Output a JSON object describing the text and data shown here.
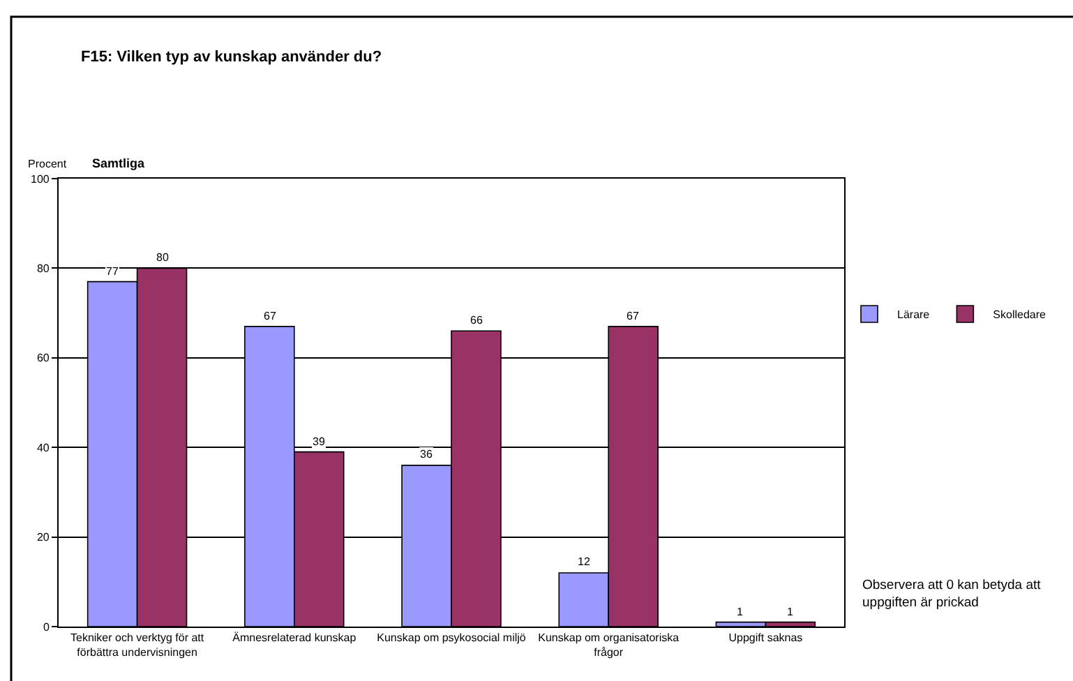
{
  "chart_data": {
    "type": "bar",
    "title": "F15: Vilken typ av kunskap använder du?",
    "subtitle": "Samtliga",
    "ylabel": "Procent",
    "categories": [
      "Tekniker och verktyg för att förbättra undervisningen",
      "Ämnesrelaterad kunskap",
      "Kunskap om psykosocial miljö",
      "Kunskap om organisatoriska frågor",
      "Uppgift saknas"
    ],
    "series": [
      {
        "name": "Lärare",
        "color": "#9999ff",
        "values": [
          77,
          67,
          36,
          12,
          1
        ]
      },
      {
        "name": "Skolledare",
        "color": "#993366",
        "values": [
          80,
          39,
          66,
          67,
          1
        ]
      }
    ],
    "ylim": [
      0,
      100
    ],
    "yticks": [
      0,
      20,
      40,
      60,
      80,
      100
    ],
    "grid": "y",
    "legend": "right",
    "data_labels": true,
    "annotations": [
      "Observera att 0 kan betyda att uppgiften är prickad"
    ]
  }
}
